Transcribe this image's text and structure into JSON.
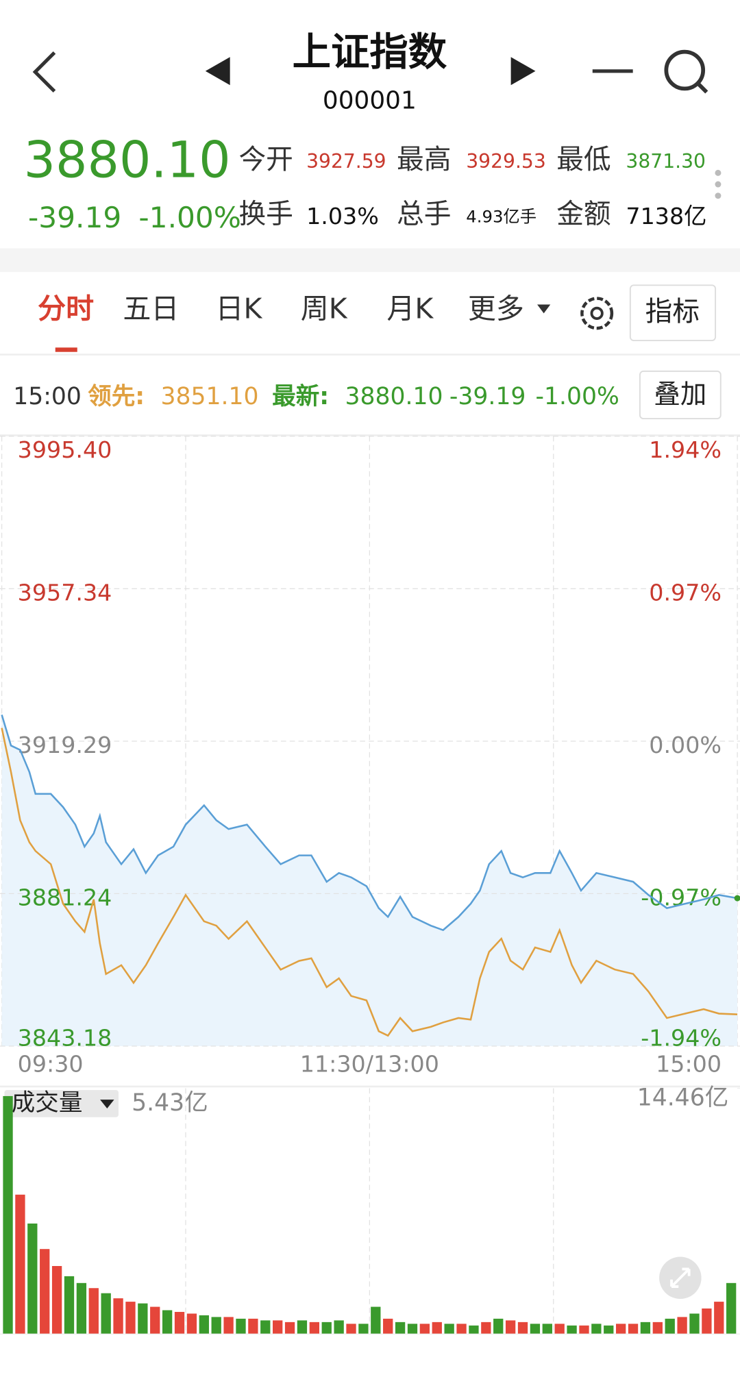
{
  "header": {
    "title": "上证指数",
    "code": "000001"
  },
  "quote": {
    "price": "3880.10",
    "change": "-39.19",
    "change_pct": "-1.00%",
    "stats": [
      {
        "label": "今开",
        "value": "3927.59"
      },
      {
        "label": "最高",
        "value": "3929.53"
      },
      {
        "label": "最低",
        "value": "3871.30"
      },
      {
        "label": "换手",
        "value": "1.03%"
      },
      {
        "label": "总手",
        "value": "4.93亿手"
      },
      {
        "label": "金额",
        "value": "7138亿"
      }
    ]
  },
  "tabs": [
    "分时",
    "五日",
    "日K",
    "周K",
    "月K",
    "更多"
  ],
  "indicator_button": "指标",
  "info_bar": {
    "time": "15:00",
    "lead_value": "3851.10",
    "latest_value": "3880.10",
    "latest_change": "-39.19",
    "latest_pct": "-1.00%",
    "overlay_button": "叠加"
  },
  "chart_data": [
    {
      "type": "line",
      "x": [
        0,
        3,
        6,
        9,
        11,
        16,
        20,
        24,
        27,
        30,
        32,
        34,
        39,
        43,
        47,
        51,
        56,
        60,
        66,
        70,
        74,
        80,
        86,
        91,
        97,
        101,
        106,
        110,
        114,
        119,
        123,
        126,
        130,
        134,
        140,
        144,
        149,
        153,
        156,
        159,
        163,
        166,
        170,
        174,
        179,
        182,
        186,
        189,
        194,
        200,
        206,
        211,
        217,
        223,
        229,
        234,
        240
      ],
      "xlim": [
        0,
        240
      ],
      "xticks": [
        {
          "value": 0,
          "label": "09:30"
        },
        {
          "value": 120,
          "label": "11:30/13:00"
        },
        {
          "value": 240,
          "label": "15:00"
        }
      ],
      "ylim": [
        3843.18,
        3995.4
      ],
      "yticks": [
        {
          "value": 3995.4,
          "label": "3995.40"
        },
        3957.34,
        3919.29,
        3881.24,
        3843.18
      ],
      "y2lim": [
        -1.94,
        1.94
      ],
      "y2ticks": [
        {
          "value": 1.94,
          "label": "1.94%"
        },
        {
          "value": 0.97,
          "label": "0.97%"
        },
        {
          "value": 0,
          "label": "0.00%"
        },
        {
          "value": -0.97,
          "label": "-0.97%"
        },
        {
          "value": -1.94,
          "label": "-1.94%"
        }
      ],
      "grid": true,
      "series": [
        {
          "name": "最新:",
          "color": "#5a9fd6",
          "area_color": "#eaf4fc",
          "values": [
            3925.87,
            3918.19,
            3917.1,
            3911.61,
            3906.13,
            3906.13,
            3902.84,
            3898.46,
            3892.97,
            3896.26,
            3900.65,
            3894.07,
            3888.59,
            3892.32,
            3886.39,
            3890.78,
            3892.97,
            3898.46,
            3903.28,
            3899.55,
            3897.36,
            3898.46,
            3892.97,
            3888.59,
            3890.78,
            3890.78,
            3884.2,
            3886.39,
            3885.3,
            3883.1,
            3877.62,
            3875.43,
            3880.47,
            3875.43,
            3873.24,
            3872.14,
            3875.43,
            3878.72,
            3882.01,
            3888.59,
            3891.88,
            3886.39,
            3885.3,
            3886.39,
            3886.39,
            3891.88,
            3886.39,
            3882.01,
            3886.39,
            3885.3,
            3884.2,
            3880.91,
            3877.62,
            3878.72,
            3879.81,
            3880.91,
            3880.1
          ]
        },
        {
          "name": "领先:",
          "color": "#e0a040",
          "values": [
            3922.58,
            3911.61,
            3899.55,
            3894.07,
            3891.88,
            3888.59,
            3878.72,
            3874.33,
            3871.7,
            3879.8,
            3868.85,
            3861.18,
            3863.37,
            3858.98,
            3863.37,
            3868.85,
            3875.43,
            3880.91,
            3874.33,
            3873.24,
            3869.95,
            3874.33,
            3867.75,
            3862.27,
            3864.46,
            3865.1,
            3857.9,
            3860.1,
            3855.7,
            3854.6,
            3846.9,
            3845.8,
            3850.2,
            3846.9,
            3848.0,
            3849.1,
            3850.2,
            3849.8,
            3860.1,
            3866.7,
            3870.0,
            3864.5,
            3862.3,
            3867.8,
            3866.7,
            3872.1,
            3863.4,
            3859.0,
            3864.5,
            3862.3,
            3861.2,
            3856.8,
            3850.2,
            3851.3,
            3852.4,
            3851.3,
            3851.1
          ]
        }
      ]
    },
    {
      "type": "bar",
      "selector": "成交量",
      "summary": "5.43亿",
      "x": [
        2,
        6,
        10,
        14,
        18,
        22,
        26,
        30,
        34,
        38,
        42,
        46,
        50,
        54,
        58,
        62,
        66,
        70,
        74,
        78,
        82,
        86,
        90,
        94,
        98,
        102,
        106,
        110,
        114,
        118,
        122,
        126,
        130,
        134,
        138,
        142,
        146,
        150,
        154,
        158,
        162,
        166,
        170,
        174,
        178,
        182,
        186,
        190,
        194,
        198,
        202,
        206,
        210,
        214,
        218,
        222,
        226,
        230,
        234,
        238
      ],
      "xlim": [
        0,
        240
      ],
      "ylim": [
        0,
        14.46
      ],
      "yticks": [
        {
          "value": 14.46,
          "label": "14.46亿"
        }
      ],
      "values": [
        14.0,
        8.2,
        6.5,
        5.0,
        4.0,
        3.4,
        3.0,
        2.7,
        2.4,
        2.1,
        1.9,
        1.8,
        1.6,
        1.4,
        1.3,
        1.2,
        1.1,
        1.0,
        1.0,
        0.9,
        0.9,
        0.8,
        0.8,
        0.7,
        0.8,
        0.7,
        0.7,
        0.8,
        0.6,
        0.6,
        1.6,
        0.9,
        0.7,
        0.6,
        0.6,
        0.7,
        0.6,
        0.6,
        0.5,
        0.7,
        0.9,
        0.8,
        0.7,
        0.6,
        0.6,
        0.6,
        0.5,
        0.5,
        0.6,
        0.5,
        0.6,
        0.6,
        0.7,
        0.7,
        0.9,
        1.0,
        1.2,
        1.5,
        1.9,
        3.0
      ],
      "colors": [
        "#3a9a2c",
        "#e5463a",
        "#3a9a2c",
        "#e5463a",
        "#e5463a",
        "#3a9a2c",
        "#3a9a2c",
        "#e5463a",
        "#3a9a2c",
        "#e5463a",
        "#e5463a",
        "#3a9a2c",
        "#e5463a",
        "#3a9a2c",
        "#e5463a",
        "#e5463a",
        "#3a9a2c",
        "#3a9a2c",
        "#e5463a",
        "#3a9a2c",
        "#e5463a",
        "#3a9a2c",
        "#e5463a",
        "#e5463a",
        "#3a9a2c",
        "#e5463a",
        "#3a9a2c",
        "#3a9a2c",
        "#e5463a",
        "#3a9a2c",
        "#3a9a2c",
        "#e5463a",
        "#3a9a2c",
        "#3a9a2c",
        "#e5463a",
        "#e5463a",
        "#3a9a2c",
        "#e5463a",
        "#3a9a2c",
        "#e5463a",
        "#3a9a2c",
        "#e5463a",
        "#e5463a",
        "#3a9a2c",
        "#3a9a2c",
        "#e5463a",
        "#3a9a2c",
        "#e5463a",
        "#3a9a2c",
        "#3a9a2c",
        "#e5463a",
        "#e5463a",
        "#3a9a2c",
        "#e5463a",
        "#3a9a2c",
        "#e5463a",
        "#3a9a2c",
        "#e5463a",
        "#e5463a",
        "#3a9a2c"
      ]
    }
  ]
}
